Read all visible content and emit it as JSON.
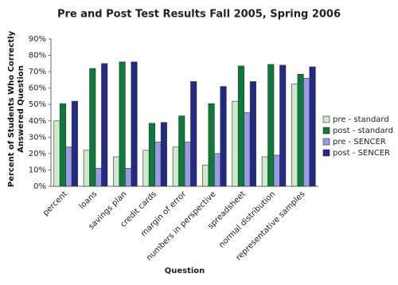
{
  "chart_data": {
    "type": "bar",
    "title": "Pre and Post Test Results Fall 2005, Spring 2006",
    "x_label": "Question",
    "y_label": "Percent of Students Who Correctly Answered Question",
    "categories": [
      "percent",
      "loans",
      "savings plan",
      "credit cards",
      "margin of error",
      "numbers in perspective",
      "spreadsheet",
      "normal distribution",
      "representative samples"
    ],
    "series": [
      {
        "name": "pre - standard",
        "color": "#cdeacb",
        "values": [
          40,
          22,
          18,
          22,
          24,
          13,
          52,
          18,
          62.5
        ]
      },
      {
        "name": "post - standard",
        "color": "#0b7a3b",
        "values": [
          50.5,
          72,
          76,
          38.5,
          43,
          50.5,
          73.5,
          74.5,
          68.5
        ]
      },
      {
        "name": "pre - SENCER",
        "color": "#9a9be0",
        "values": [
          24,
          11,
          11,
          27,
          27,
          20,
          45,
          19,
          66
        ]
      },
      {
        "name": "post - SENCER",
        "color": "#232a86",
        "values": [
          52,
          75,
          76,
          39,
          64,
          61,
          64,
          74,
          73
        ]
      }
    ],
    "ylim": [
      0,
      90
    ],
    "yticks": [
      {
        "value": 0,
        "label": "0%"
      },
      {
        "value": 10,
        "label": "10%"
      },
      {
        "value": 20,
        "label": "20%"
      },
      {
        "value": 30,
        "label": "30%"
      },
      {
        "value": 40,
        "label": "40%"
      },
      {
        "value": 50,
        "label": "50%"
      },
      {
        "value": 60,
        "label": "60%"
      },
      {
        "value": 70,
        "label": "70%"
      },
      {
        "value": 80,
        "label": "80%"
      },
      {
        "value": 90,
        "label": "90%"
      }
    ],
    "grid": false,
    "legend": "right"
  }
}
